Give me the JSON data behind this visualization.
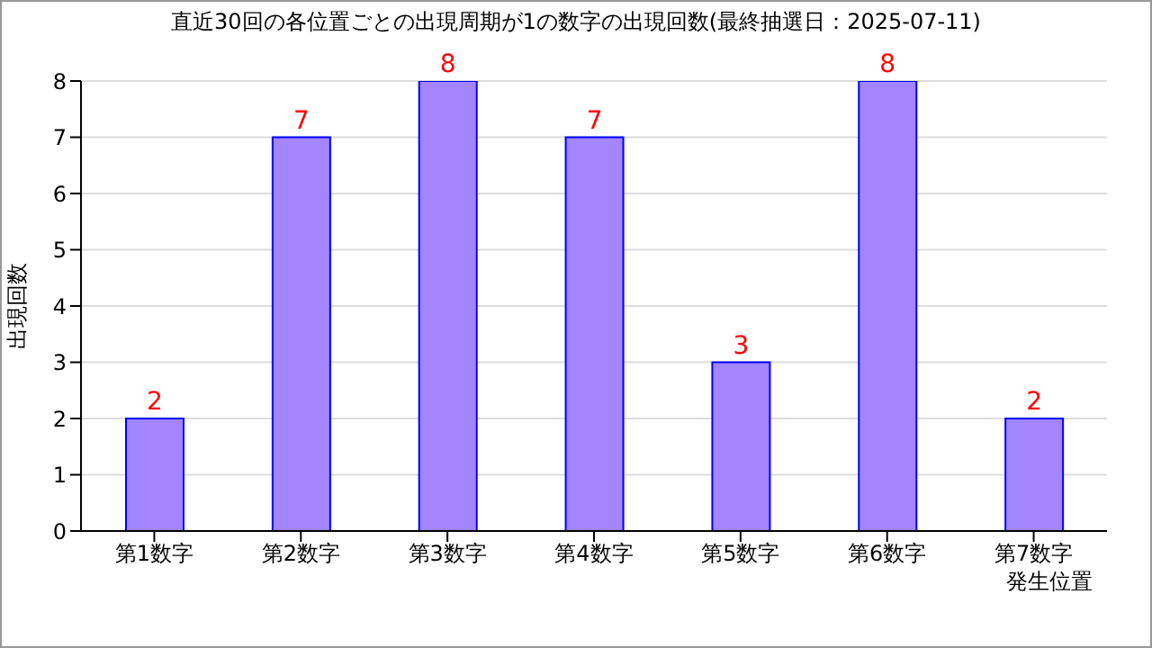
{
  "chart_data": {
    "type": "bar",
    "title": "直近30回の各位置ごとの出現周期が1の数字の出現回数(最終抽選日：2025-07-11)",
    "xlabel": "発生位置",
    "ylabel": "出現回数",
    "categories": [
      "第1数字",
      "第2数字",
      "第3数字",
      "第4数字",
      "第5数字",
      "第6数字",
      "第7数字"
    ],
    "values": [
      2,
      7,
      8,
      7,
      3,
      8,
      2
    ],
    "color": "#a285ff",
    "ylim": [
      0,
      8
    ],
    "yticks": [
      0,
      1,
      2,
      3,
      4,
      5,
      6,
      7,
      8
    ],
    "grid": "y",
    "data_labels": true
  }
}
